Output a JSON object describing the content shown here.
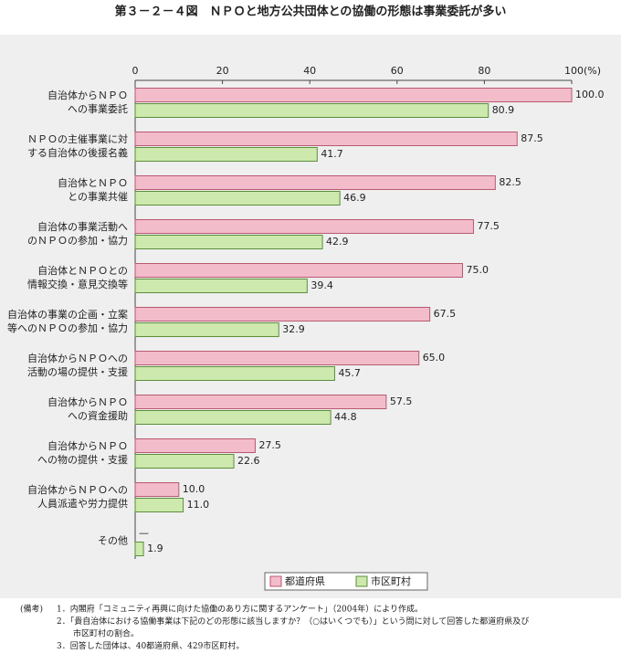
{
  "chart_data": {
    "type": "bar",
    "orientation": "horizontal",
    "title": "第３－２－４図　ＮＰＯと地方公共団体との協働の形態は事業委託が多い",
    "categories": [
      [
        "自治体からＮＰＯ",
        "への事業委託"
      ],
      [
        "ＮＰＯの主催事業に対",
        "する自治体の後援名義"
      ],
      [
        "自治体とＮＰＯ",
        "との事業共催"
      ],
      [
        "自治体の事業活動へ",
        "のＮＰＯの参加・協力"
      ],
      [
        "自治体とＮＰＯとの",
        "情報交換・意見交換等"
      ],
      [
        "自治体の事業の企画・立案",
        "等へのＮＰＯの参加・協力"
      ],
      [
        "自治体からＮＰＯへの",
        "活動の場の提供・支援"
      ],
      [
        "自治体からＮＰＯ",
        "への資金援助"
      ],
      [
        "自治体からＮＰＯ",
        "への物の提供・支援"
      ],
      [
        "自治体からＮＰＯへの",
        "人員派遣や労力提供"
      ],
      [
        "その他"
      ]
    ],
    "series": [
      {
        "name": "都道府県",
        "color": "#f2bccb",
        "stroke": "#b85a70",
        "values": [
          100.0,
          87.5,
          82.5,
          77.5,
          75.0,
          67.5,
          65.0,
          57.5,
          27.5,
          10.0,
          null
        ],
        "value_labels": [
          "100.0",
          "87.5",
          "82.5",
          "77.5",
          "75.0",
          "67.5",
          "65.0",
          "57.5",
          "27.5",
          "10.0",
          "—"
        ]
      },
      {
        "name": "市区町村",
        "color": "#cde9ad",
        "stroke": "#5b8f3c",
        "values": [
          80.9,
          41.7,
          46.9,
          42.9,
          39.4,
          32.9,
          45.7,
          44.8,
          22.6,
          11.0,
          1.9
        ],
        "value_labels": [
          "80.9",
          "41.7",
          "46.9",
          "42.9",
          "39.4",
          "32.9",
          "45.7",
          "44.8",
          "22.6",
          "11.0",
          "1.9"
        ]
      }
    ],
    "xlim": [
      0,
      100
    ],
    "xticks": [
      0,
      20,
      40,
      60,
      80,
      {
        "value": 100,
        "label": "100(%)"
      }
    ],
    "notes_head": "(備考)",
    "notes": [
      [
        "1．内閣府「コミュニティ再興に向けた協働のあり方に関するアンケート」（2004年）により作成。"
      ],
      [
        "2．「貴自治体における協働事業は下記のどの形態に該当しますか？（○はいくつでも）」という問に対して回答した都道府県及び",
        "市区町村の割合。"
      ],
      [
        "3．回答した団体は、40都道府県、429市区町村。"
      ]
    ]
  }
}
